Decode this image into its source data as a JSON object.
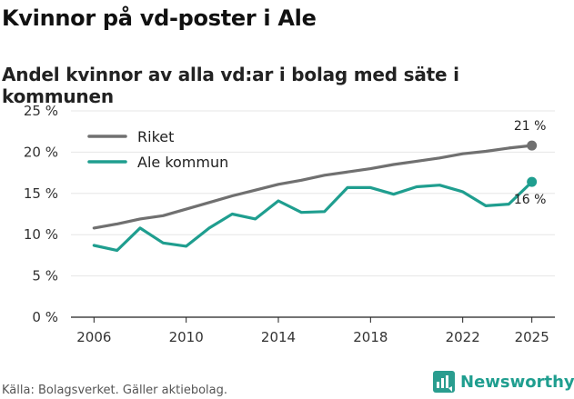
{
  "title": "Kvinnor på vd-poster i Ale",
  "subtitle": "Andel kvinnor av alla vd:ar i bolag med säte i kommunen",
  "source": "Källa: Bolagsverket. Gäller aktiebolag.",
  "brand": {
    "name": "Newsworthy",
    "icon": "bar-chart-logo-icon",
    "color": "#2a9d8f"
  },
  "chart_data": {
    "type": "line",
    "title": "Kvinnor på vd-poster i Ale",
    "subtitle": "Andel kvinnor av alla vd:ar i bolag med säte i kommunen",
    "xlabel": "",
    "ylabel": "",
    "x": [
      2006,
      2007,
      2008,
      2009,
      2010,
      2011,
      2012,
      2013,
      2014,
      2015,
      2016,
      2017,
      2018,
      2019,
      2020,
      2021,
      2022,
      2023,
      2024,
      2025
    ],
    "xticks": [
      2006,
      2010,
      2014,
      2018,
      2022,
      2025
    ],
    "xlim": [
      2005,
      2026
    ],
    "ylim": [
      0,
      25
    ],
    "yticks": [
      0,
      5,
      10,
      15,
      20,
      25
    ],
    "ytick_labels": [
      "0 %",
      "5 %",
      "10 %",
      "15 %",
      "20 %",
      "25 %"
    ],
    "grid": "horizontal",
    "legend_position": "top-left",
    "series": [
      {
        "name": "Riket",
        "color": "#707070",
        "values": [
          10.8,
          11.3,
          11.9,
          12.3,
          13.1,
          13.9,
          14.7,
          15.4,
          16.1,
          16.6,
          17.2,
          17.6,
          18.0,
          18.5,
          18.9,
          19.3,
          19.8,
          20.1,
          20.5,
          20.8
        ],
        "end_label": "21 %"
      },
      {
        "name": "Ale kommun",
        "color": "#1f9e8f",
        "values": [
          8.7,
          8.1,
          10.8,
          9.0,
          8.6,
          10.8,
          12.5,
          11.9,
          14.1,
          12.7,
          12.8,
          15.7,
          15.7,
          14.9,
          15.8,
          16.0,
          15.2,
          13.5,
          13.7,
          16.4
        ],
        "end_label": "16 %"
      }
    ]
  }
}
